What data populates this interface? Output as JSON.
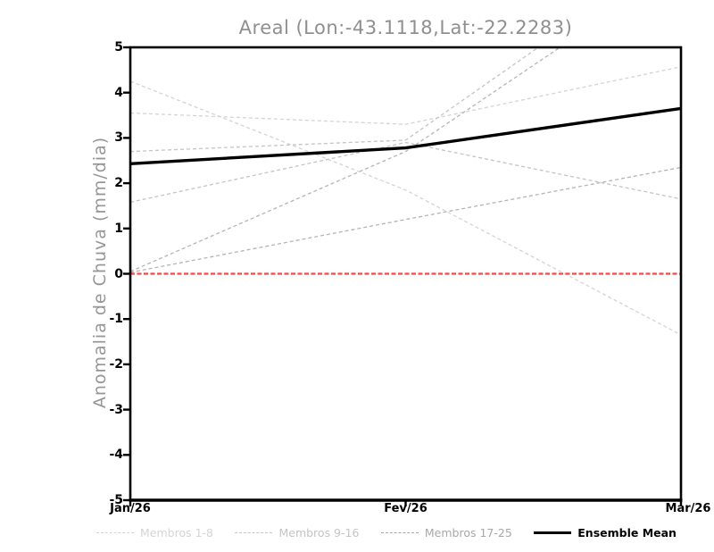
{
  "title": "Areal (Lon:-43.1118,Lat:-22.2283)",
  "axes": {
    "ylabel": "Anomalia de Chuva (mm/dia)",
    "yticks": [
      5,
      4,
      3,
      2,
      1,
      0,
      -1,
      -2,
      -3,
      -4,
      -5
    ],
    "xticks": [
      "Jan/26",
      "Fev/26",
      "Mar/26"
    ],
    "ylim": [
      -5,
      5
    ],
    "frame_color": "#000000"
  },
  "legend": [
    {
      "label": "Membros 1-8",
      "color": "#d4d4d4",
      "style": "dashed"
    },
    {
      "label": "Membros 9-16",
      "color": "#c4c4c4",
      "style": "dashed"
    },
    {
      "label": "Membros 17-25",
      "color": "#a8a8a8",
      "style": "dashed"
    },
    {
      "label": "Ensemble Mean",
      "color": "#000000",
      "style": "solid"
    }
  ],
  "chart_data": {
    "type": "line",
    "title": "Areal (Lon:-43.1118,Lat:-22.2283)",
    "xlabel": "",
    "ylabel": "Anomalia de Chuva (mm/dia)",
    "x_categories": [
      "Jan/26",
      "Fev/26",
      "Mar/26"
    ],
    "ylim": [
      -5,
      5
    ],
    "grid": false,
    "legend_position": "bottom",
    "series": [
      {
        "name": "Membro (Membros 1-8)",
        "color": "#d4d4d4",
        "dash": "4 3",
        "width": 1.3,
        "values": [
          4.25,
          1.85,
          -1.35
        ]
      },
      {
        "name": "Membro (Membros 1-8)",
        "color": "#d4d4d4",
        "dash": "4 3",
        "width": 1.3,
        "values": [
          3.55,
          3.3,
          4.57
        ]
      },
      {
        "name": "Membro (Membros 9-16)",
        "color": "#c4c4c4",
        "dash": "4 3",
        "width": 1.3,
        "values": [
          2.7,
          2.95,
          7.2
        ]
      },
      {
        "name": "Membro (Membros 9-16)",
        "color": "#c4c4c4",
        "dash": "4 3",
        "width": 1.3,
        "values": [
          1.58,
          2.9,
          1.65
        ]
      },
      {
        "name": "Membro (Membros 17-25)",
        "color": "#b4b4b4",
        "dash": "4 3",
        "width": 1.3,
        "values": [
          0.05,
          2.7,
          6.8
        ]
      },
      {
        "name": "Membro (Membros 17-25)",
        "color": "#b4b4b4",
        "dash": "4 3",
        "width": 1.3,
        "values": [
          0.03,
          1.2,
          2.35
        ]
      },
      {
        "name": "Zero line",
        "color": "#ff4444",
        "dash": "5 2.5",
        "width": 2.2,
        "values": [
          0,
          0,
          0
        ]
      },
      {
        "name": "Ensemble Mean",
        "color": "#000000",
        "dash": "",
        "width": 3.4,
        "values": [
          2.43,
          2.78,
          3.65
        ]
      }
    ]
  }
}
